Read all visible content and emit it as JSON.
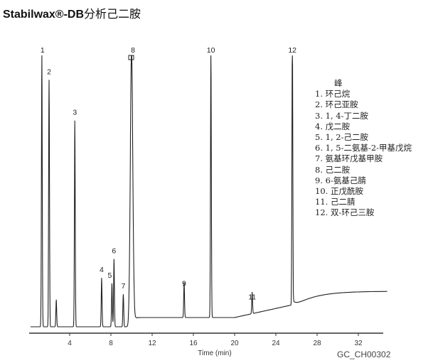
{
  "title": {
    "bold": "Stabilwax®-DB",
    "rest": "分析己二胺"
  },
  "figure_code": "GC_CH00302",
  "chart_data": {
    "type": "line",
    "title": "Stabilwax®-DB分析己二胺",
    "xlabel": "Time (min)",
    "ylabel": "",
    "xlim": [
      0,
      35
    ],
    "x_ticks": [
      4,
      8,
      12,
      16,
      20,
      24,
      28,
      32
    ],
    "grid": false,
    "legend_title": "峰",
    "legend_position": "right",
    "peaks": [
      {
        "label": "1",
        "name": "1. 环己烷",
        "time": 1.3,
        "height": 1.0
      },
      {
        "label": "2",
        "name": "2. 环己亚胺",
        "time": 2.0,
        "height": 0.91
      },
      {
        "label": "3",
        "name": "3. 1, 4-丁二胺",
        "time": 4.5,
        "height": 0.76
      },
      {
        "label": "4",
        "name": "4. 戊二胺",
        "time": 7.1,
        "height": 0.18
      },
      {
        "label": "5",
        "name": "5. 1, 2-己二胺",
        "time": 8.1,
        "height": 0.16
      },
      {
        "label": "6",
        "name": "6. 1, 5-二氨基-2-甲基戊烷",
        "time": 8.3,
        "height": 0.25
      },
      {
        "label": "7",
        "name": "7. 氨基环戊基甲胺",
        "time": 9.2,
        "height": 0.12
      },
      {
        "label": "8",
        "name": "8. 己二胺",
        "time": 10.0,
        "height": 1.0
      },
      {
        "label": "9",
        "name": "9.  6-氨基己腈",
        "time": 15.1,
        "height": 0.13
      },
      {
        "label": "10",
        "name": "10. 正戊酰胺",
        "time": 17.7,
        "height": 1.0
      },
      {
        "label": "11",
        "name": "11. 己二腈",
        "time": 21.7,
        "height": 0.08
      },
      {
        "label": "12",
        "name": "12. 双-环己三胺",
        "time": 25.6,
        "height": 1.0
      }
    ]
  }
}
